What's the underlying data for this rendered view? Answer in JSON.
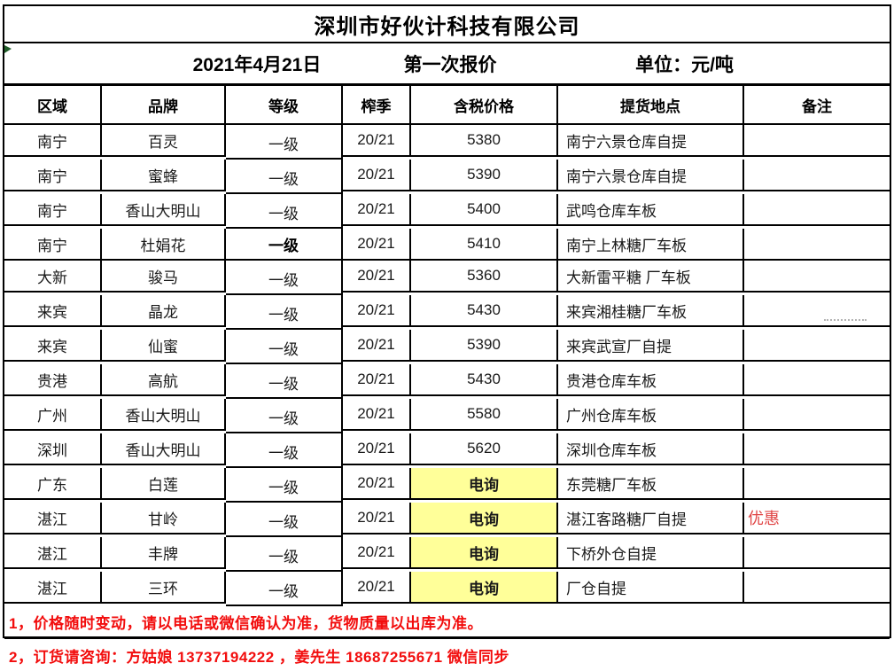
{
  "company": "深圳市好伙计科技有限公司",
  "subtitle": {
    "date": "2021年4月21日",
    "quote_no": "第一次报价",
    "unit": "单位：元/吨"
  },
  "columns": {
    "region": "区域",
    "brand": "品牌",
    "grade": "等级",
    "season": "榨季",
    "price": "含税价格",
    "location": "提货地点",
    "remark": "备注"
  },
  "rows": [
    {
      "region": "南宁",
      "brand": "百灵",
      "grade": "一级",
      "grade_bold": false,
      "season": "20/21",
      "price": "5380",
      "price_style": "normal",
      "location": "南宁六景仓库自提",
      "remark": ""
    },
    {
      "region": "南宁",
      "brand": "蜜蜂",
      "grade": "一级",
      "grade_bold": false,
      "season": "20/21",
      "price": "5390",
      "price_style": "normal",
      "location": "南宁六景仓库自提",
      "remark": ""
    },
    {
      "region": "南宁",
      "brand": "香山大明山",
      "grade": "一级",
      "grade_bold": false,
      "season": "20/21",
      "price": "5400",
      "price_style": "normal",
      "location": "武鸣仓库车板",
      "remark": ""
    },
    {
      "region": "南宁",
      "brand": "杜娟花",
      "grade": "一级",
      "grade_bold": true,
      "season": "20/21",
      "price": "5410",
      "price_style": "normal",
      "location": "南宁上林糖厂车板",
      "remark": ""
    },
    {
      "region": "大新",
      "brand": "骏马",
      "grade": "一级",
      "grade_bold": false,
      "season": "20/21",
      "price": "5360",
      "price_style": "normal",
      "location": "大新雷平糖 厂车板",
      "remark": ""
    },
    {
      "region": "来宾",
      "brand": "晶龙",
      "grade": "一级",
      "grade_bold": false,
      "season": "20/21",
      "price": "5430",
      "price_style": "normal",
      "location": "来宾湘桂糖厂车板",
      "remark": ""
    },
    {
      "region": "来宾",
      "brand": "仙蜜",
      "grade": "一级",
      "grade_bold": false,
      "season": "20/21",
      "price": "5390",
      "price_style": "normal",
      "location": "来宾武宣厂自提",
      "remark": ""
    },
    {
      "region": "贵港",
      "brand": "高航",
      "grade": "一级",
      "grade_bold": false,
      "season": "20/21",
      "price": "5430",
      "price_style": "normal",
      "location": "贵港仓库车板",
      "remark": ""
    },
    {
      "region": "广州",
      "brand": "香山大明山",
      "grade": "一级",
      "grade_bold": false,
      "season": "20/21",
      "price": "5580",
      "price_style": "normal",
      "location": "广州仓库车板",
      "remark": ""
    },
    {
      "region": "深圳",
      "brand": "香山大明山",
      "grade": "一级",
      "grade_bold": false,
      "season": "20/21",
      "price": "5620",
      "price_style": "normal",
      "location": "深圳仓库车板",
      "remark": ""
    },
    {
      "region": "广东",
      "brand": "白莲",
      "grade": "一级",
      "grade_bold": false,
      "season": "20/21",
      "price": "电询",
      "price_style": "inquiry",
      "location": "东莞糖厂车板",
      "remark": ""
    },
    {
      "region": "湛江",
      "brand": "甘岭",
      "grade": "一级",
      "grade_bold": false,
      "season": "20/21",
      "price": "电询",
      "price_style": "inquiry",
      "location": "湛江客路糖厂自提",
      "remark": "优惠"
    },
    {
      "region": "湛江",
      "brand": "丰牌",
      "grade": "一级",
      "grade_bold": false,
      "season": "20/21",
      "price": "电询",
      "price_style": "inquiry",
      "location": "下桥外仓自提",
      "remark": ""
    },
    {
      "region": "湛江",
      "brand": "三环",
      "grade": "一级",
      "grade_bold": false,
      "season": "20/21",
      "price": "电询",
      "price_style": "inquiry",
      "location": "厂仓自提",
      "remark": ""
    }
  ],
  "notes": [
    "1，价格随时变动，请以电话或微信确认为准，货物质量以出库为准。",
    "2，订货请咨询：方姑娘 13737194222 ，姜先生 18687255671  微信同步"
  ],
  "colors": {
    "price_red": "#fe0000",
    "inquiry_bg": "#ffff99",
    "note_red": "#f20d0d",
    "remark_red": "#e04545",
    "corner_green": "#1f5c28",
    "border_black": "#000000"
  }
}
